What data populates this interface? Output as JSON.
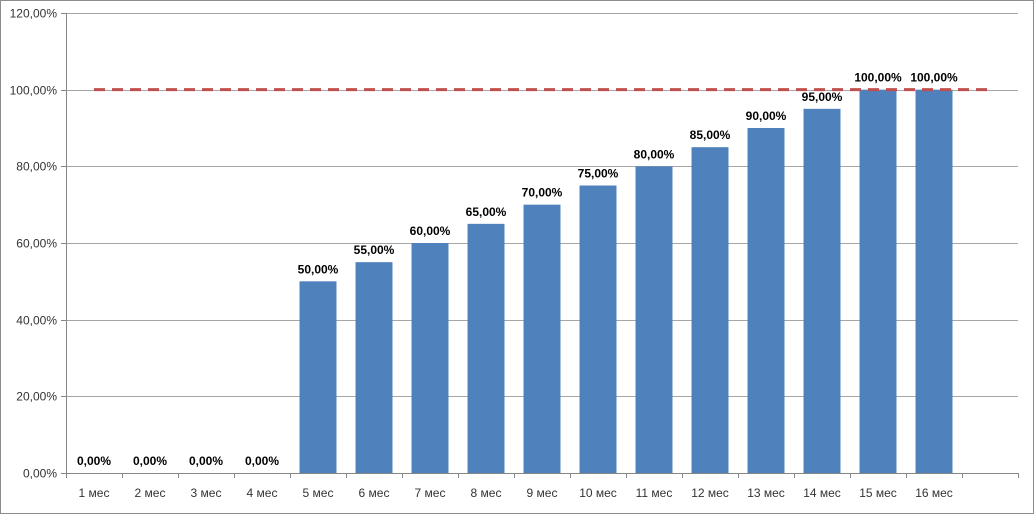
{
  "chart_data": {
    "type": "bar",
    "categories": [
      "1 мес",
      "2 мес",
      "3 мес",
      "4 мес",
      "5 мес",
      "6 мес",
      "7 мес",
      "8 мес",
      "9 мес",
      "10 мес",
      "11 мес",
      "12 мес",
      "13 мес",
      "14 мес",
      "15 мес",
      "16 мес"
    ],
    "values": [
      0,
      0,
      0,
      0,
      50,
      55,
      60,
      65,
      70,
      75,
      80,
      85,
      90,
      95,
      100,
      100
    ],
    "data_labels": [
      "0,00%",
      "0,00%",
      "0,00%",
      "0,00%",
      "50,00%",
      "55,00%",
      "60,00%",
      "65,00%",
      "70,00%",
      "75,00%",
      "80,00%",
      "85,00%",
      "90,00%",
      "95,00%",
      "100,00%",
      "100,00%"
    ],
    "y_ticks": [
      0,
      20,
      40,
      60,
      80,
      100,
      120
    ],
    "y_tick_labels": [
      "0,00%",
      "20,00%",
      "40,00%",
      "60,00%",
      "80,00%",
      "100,00%",
      "120,00%"
    ],
    "ylim": [
      0,
      120
    ],
    "reference_line": {
      "value": 100,
      "style": "dashed"
    },
    "title": "",
    "xlabel": "",
    "ylabel": "",
    "grid": true,
    "legend": "none",
    "colors": {
      "bar": "#4f81bd",
      "reference_line": "#c0504d",
      "grid": "#a6a6a6",
      "axis": "#868686"
    }
  }
}
